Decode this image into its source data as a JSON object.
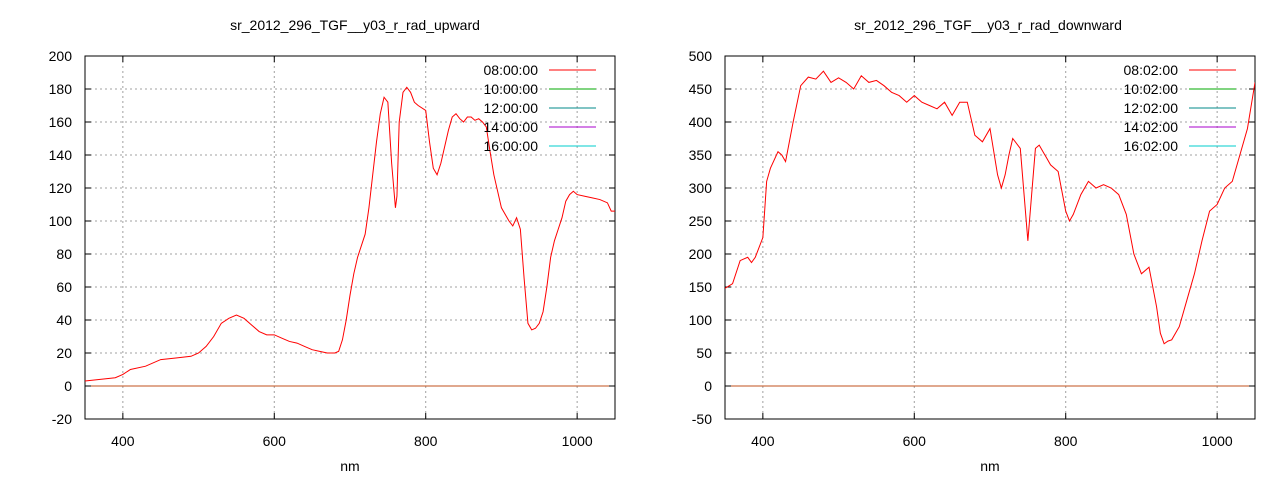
{
  "chart_data": [
    {
      "type": "line",
      "title": "sr_2012_296_TGF__y03_r_rad_upward",
      "xlabel": "nm",
      "ylabel": "",
      "xlim": [
        350,
        1050
      ],
      "ylim": [
        -20,
        200
      ],
      "xticks": [
        400,
        600,
        800,
        1000
      ],
      "yticks": [
        -20,
        0,
        20,
        40,
        60,
        80,
        100,
        120,
        140,
        160,
        180,
        200
      ],
      "grid": true,
      "legend_position": "top-right",
      "series": [
        {
          "name": "08:00:00",
          "color": "#ff0000",
          "x": [
            350,
            370,
            390,
            400,
            410,
            430,
            450,
            470,
            490,
            500,
            510,
            520,
            530,
            540,
            550,
            560,
            570,
            580,
            590,
            600,
            610,
            620,
            630,
            640,
            650,
            660,
            670,
            680,
            685,
            690,
            695,
            700,
            705,
            710,
            720,
            725,
            730,
            735,
            740,
            745,
            750,
            755,
            760,
            762,
            765,
            770,
            775,
            780,
            785,
            790,
            800,
            805,
            810,
            815,
            820,
            825,
            830,
            835,
            840,
            845,
            850,
            855,
            860,
            865,
            870,
            875,
            880,
            885,
            890,
            900,
            910,
            915,
            920,
            925,
            930,
            935,
            940,
            945,
            950,
            955,
            960,
            965,
            970,
            975,
            980,
            985,
            990,
            995,
            1000,
            1010,
            1020,
            1030,
            1040,
            1045,
            1050
          ],
          "y": [
            3,
            4,
            5,
            7,
            10,
            12,
            16,
            17,
            18,
            20,
            24,
            30,
            38,
            41,
            43,
            41,
            37,
            33,
            31,
            31,
            29,
            27,
            26,
            24,
            22,
            21,
            20,
            20,
            21,
            28,
            40,
            55,
            68,
            78,
            92,
            108,
            128,
            148,
            165,
            175,
            172,
            135,
            108,
            115,
            160,
            178,
            181,
            178,
            172,
            170,
            167,
            148,
            132,
            128,
            135,
            145,
            155,
            163,
            165,
            162,
            160,
            163,
            163,
            161,
            162,
            160,
            157,
            142,
            128,
            108,
            100,
            97,
            102,
            95,
            65,
            38,
            34,
            35,
            38,
            45,
            60,
            78,
            88,
            95,
            102,
            112,
            116,
            118,
            116,
            115,
            114,
            113,
            111,
            106,
            106
          ]
        },
        {
          "name": "10:00:00",
          "color": "#00aa00",
          "x": [],
          "y": []
        },
        {
          "name": "12:00:00",
          "color": "#008a8a",
          "x": [],
          "y": []
        },
        {
          "name": "14:00:00",
          "color": "#aa00cc",
          "x": [],
          "y": []
        },
        {
          "name": "16:00:00",
          "color": "#00cccc",
          "x": [],
          "y": []
        }
      ]
    },
    {
      "type": "line",
      "title": "sr_2012_296_TGF__y03_r_rad_downward",
      "xlabel": "nm",
      "ylabel": "",
      "xlim": [
        350,
        1050
      ],
      "ylim": [
        -50,
        500
      ],
      "xticks": [
        400,
        600,
        800,
        1000
      ],
      "yticks": [
        -50,
        0,
        50,
        100,
        150,
        200,
        250,
        300,
        350,
        400,
        450,
        500
      ],
      "grid": true,
      "legend_position": "top-right",
      "series": [
        {
          "name": "08:02:00",
          "color": "#ff0000",
          "x": [
            350,
            360,
            370,
            380,
            385,
            390,
            400,
            405,
            410,
            420,
            425,
            430,
            440,
            450,
            460,
            470,
            480,
            490,
            500,
            510,
            520,
            530,
            540,
            550,
            560,
            570,
            580,
            590,
            600,
            610,
            620,
            630,
            640,
            650,
            660,
            670,
            680,
            690,
            700,
            710,
            715,
            720,
            725,
            730,
            740,
            745,
            750,
            755,
            760,
            765,
            770,
            775,
            780,
            790,
            800,
            805,
            810,
            820,
            830,
            840,
            850,
            860,
            870,
            880,
            890,
            900,
            910,
            920,
            925,
            930,
            935,
            940,
            950,
            960,
            970,
            980,
            990,
            1000,
            1010,
            1020,
            1030,
            1040,
            1050
          ],
          "y": [
            148,
            155,
            190,
            195,
            187,
            195,
            225,
            310,
            330,
            355,
            350,
            340,
            400,
            455,
            468,
            465,
            477,
            460,
            467,
            460,
            450,
            470,
            460,
            463,
            455,
            445,
            440,
            430,
            440,
            430,
            425,
            420,
            430,
            410,
            430,
            430,
            380,
            370,
            390,
            320,
            300,
            320,
            350,
            375,
            360,
            290,
            220,
            290,
            360,
            365,
            355,
            345,
            335,
            325,
            265,
            250,
            260,
            290,
            310,
            300,
            305,
            300,
            290,
            260,
            200,
            170,
            180,
            120,
            80,
            64,
            68,
            70,
            90,
            130,
            170,
            220,
            265,
            275,
            300,
            310,
            350,
            390,
            460
          ]
        },
        {
          "name": "10:02:00",
          "color": "#00aa00",
          "x": [],
          "y": []
        },
        {
          "name": "12:02:00",
          "color": "#008a8a",
          "x": [],
          "y": []
        },
        {
          "name": "14:02:00",
          "color": "#aa00cc",
          "x": [],
          "y": []
        },
        {
          "name": "16:02:00",
          "color": "#00cccc",
          "x": [],
          "y": []
        }
      ]
    }
  ]
}
